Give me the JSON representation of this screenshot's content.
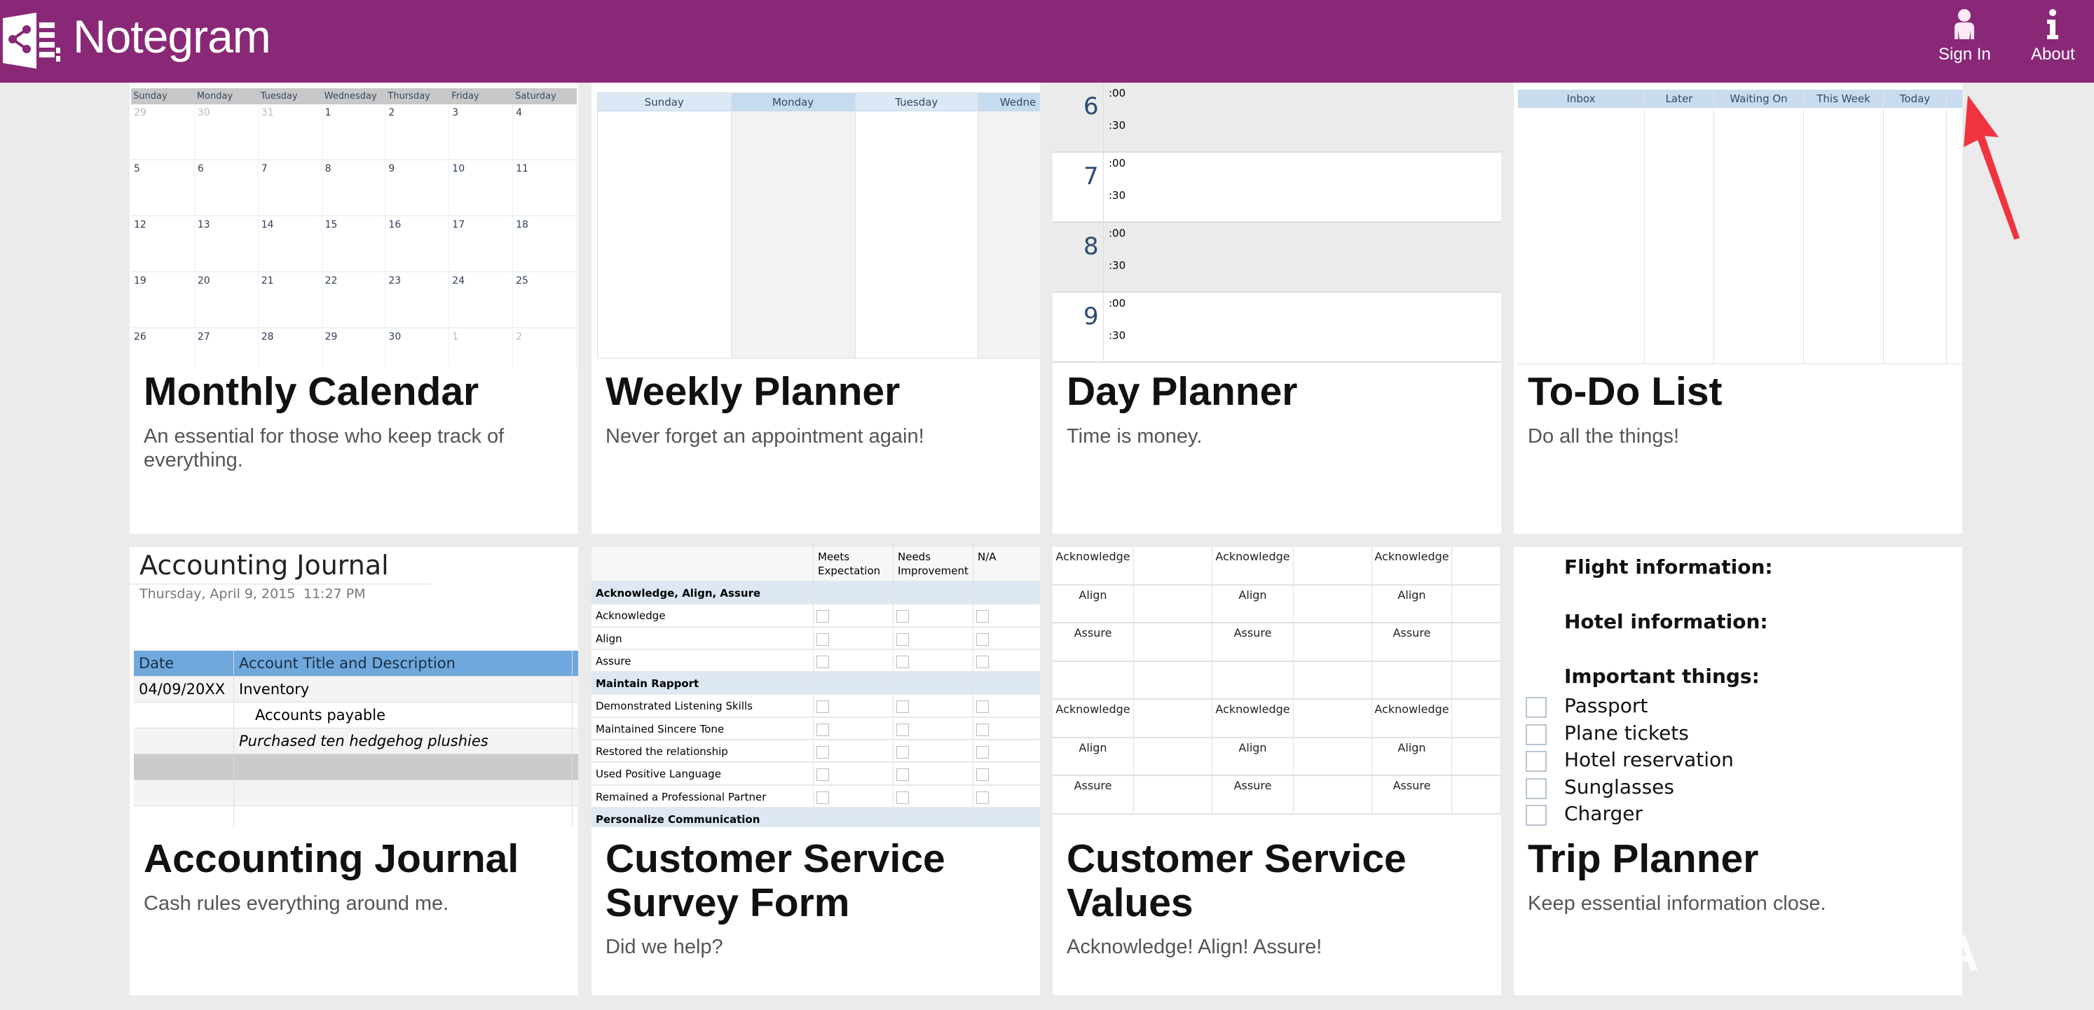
{
  "header": {
    "brand": "Notegram",
    "sign_in": "Sign In",
    "about": "About",
    "bg_color": "#8a2878"
  },
  "cards": [
    {
      "title": "Monthly Calendar",
      "desc": "An essential for those who keep track of everything."
    },
    {
      "title": "Weekly Planner",
      "desc": "Never forget an appointment again!"
    },
    {
      "title": "Day Planner",
      "desc": "Time is money."
    },
    {
      "title": "To-Do List",
      "desc": "Do all the things!"
    },
    {
      "title": "Accounting Journal",
      "desc": "Cash rules everything around me."
    },
    {
      "title": "Customer Service Survey Form",
      "desc": "Did we help?"
    },
    {
      "title": "Customer Service Values",
      "desc": "Acknowledge! Align! Assure!"
    },
    {
      "title": "Trip Planner",
      "desc": "Keep essential information close."
    }
  ],
  "monthly": {
    "days": [
      "Sunday",
      "Monday",
      "Tuesday",
      "Wednesday",
      "Thursday",
      "Friday",
      "Saturday"
    ],
    "dates": [
      "29",
      "30",
      "31",
      "1",
      "2",
      "3",
      "4",
      "5",
      "6",
      "7",
      "8",
      "9",
      "10",
      "11",
      "12",
      "13",
      "14",
      "15",
      "16",
      "17",
      "18",
      "19",
      "20",
      "21",
      "22",
      "23",
      "24",
      "25",
      "26",
      "27",
      "28",
      "29",
      "30",
      "1",
      "2"
    ]
  },
  "weekly": {
    "days": [
      "Sunday",
      "Monday",
      "Tuesday",
      "Wedne"
    ]
  },
  "day": {
    "hours": [
      "6",
      "7",
      "8",
      "9"
    ],
    "on_hour": ":00",
    "half": ":30"
  },
  "todo": {
    "columns": [
      "Inbox",
      "Later",
      "Waiting On",
      "This Week",
      "Today",
      ""
    ]
  },
  "journal": {
    "title": "Accounting Journal",
    "date": "Thursday, April 9, 2015",
    "time": "11:27 PM",
    "headers": [
      "Date",
      "Account Title and Description"
    ],
    "rows": [
      [
        "04/09/20XX",
        "Inventory"
      ],
      [
        "",
        "Accounts payable"
      ],
      [
        "",
        "Purchased ten hedgehog plushies"
      ],
      [
        "",
        ""
      ],
      [
        "",
        ""
      ],
      [
        "",
        ""
      ]
    ]
  },
  "survey": {
    "headers": [
      "",
      "Meets Expectation",
      "Needs Improvement",
      "N/A"
    ],
    "rows": [
      {
        "label": "Acknowledge, Align, Assure",
        "category": true
      },
      {
        "label": "Acknowledge"
      },
      {
        "label": "Align"
      },
      {
        "label": "Assure"
      },
      {
        "label": "Maintain Rapport",
        "category": true
      },
      {
        "label": "Demonstrated Listening Skills"
      },
      {
        "label": "Maintained Sincere Tone"
      },
      {
        "label": "Restored the relationship"
      },
      {
        "label": "Used Positive Language"
      },
      {
        "label": "Remained a Professional Partner"
      },
      {
        "label": "Personalize Communication",
        "category": true
      }
    ]
  },
  "values": {
    "rows": [
      "Acknowledge",
      "Align",
      "Assure",
      "",
      "Acknowledge",
      "Align",
      "Assure"
    ]
  },
  "trip": {
    "flight": "Flight information:",
    "hotel": "Hotel information:",
    "important": "Important things:",
    "items": [
      "Passport",
      "Plane tickets",
      "Hotel reservation",
      "Sunglasses",
      "Charger"
    ]
  },
  "watermark": "XDA"
}
